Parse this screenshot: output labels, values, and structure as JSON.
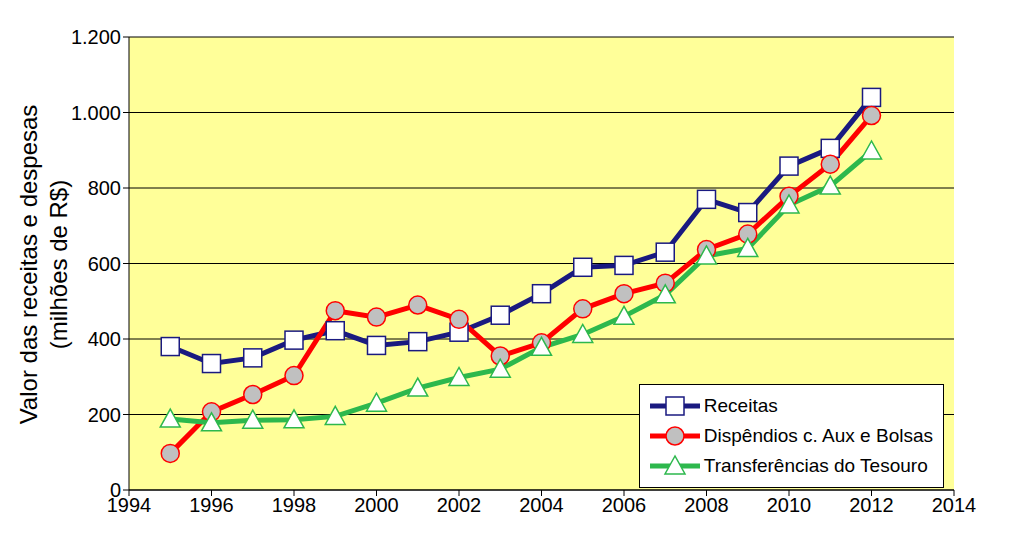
{
  "chart_data": {
    "type": "line",
    "ylabel": [
      "Valor das receitas e despesas",
      "(milhões de R$)"
    ],
    "x": [
      1995,
      1996,
      1997,
      1998,
      1999,
      2000,
      2001,
      2002,
      2003,
      2004,
      2005,
      2006,
      2007,
      2008,
      2009,
      2010,
      2011,
      2012
    ],
    "series": [
      {
        "name": "Receitas",
        "color": "#1a1a80",
        "marker": "square",
        "values": [
          380,
          335,
          350,
          397,
          422,
          383,
          393,
          418,
          463,
          520,
          590,
          595,
          630,
          770,
          735,
          858,
          905,
          1040
        ]
      },
      {
        "name": "Dispêndios c. Aux e Bolsas",
        "color": "#ff0000",
        "marker": "circle",
        "values": [
          97,
          207,
          253,
          303,
          475,
          458,
          490,
          452,
          355,
          390,
          480,
          520,
          548,
          637,
          678,
          778,
          863,
          992
        ]
      },
      {
        "name": "Transferências do Tesouro",
        "color": "#2db84d",
        "marker": "triangle",
        "values": [
          188,
          178,
          185,
          186,
          195,
          230,
          270,
          298,
          320,
          378,
          412,
          460,
          517,
          620,
          640,
          755,
          805,
          898
        ]
      }
    ],
    "xlim": [
      1994,
      2014
    ],
    "xticks": [
      1994,
      1996,
      1998,
      2000,
      2002,
      2004,
      2006,
      2008,
      2010,
      2012,
      2014
    ],
    "ylim": [
      0,
      1200
    ],
    "yticks": [
      0,
      200,
      400,
      600,
      800,
      {
        "value": 1000,
        "label": "1.000"
      },
      {
        "value": 1200,
        "label": "1.200"
      }
    ],
    "grid": true,
    "legend": "lower right"
  }
}
